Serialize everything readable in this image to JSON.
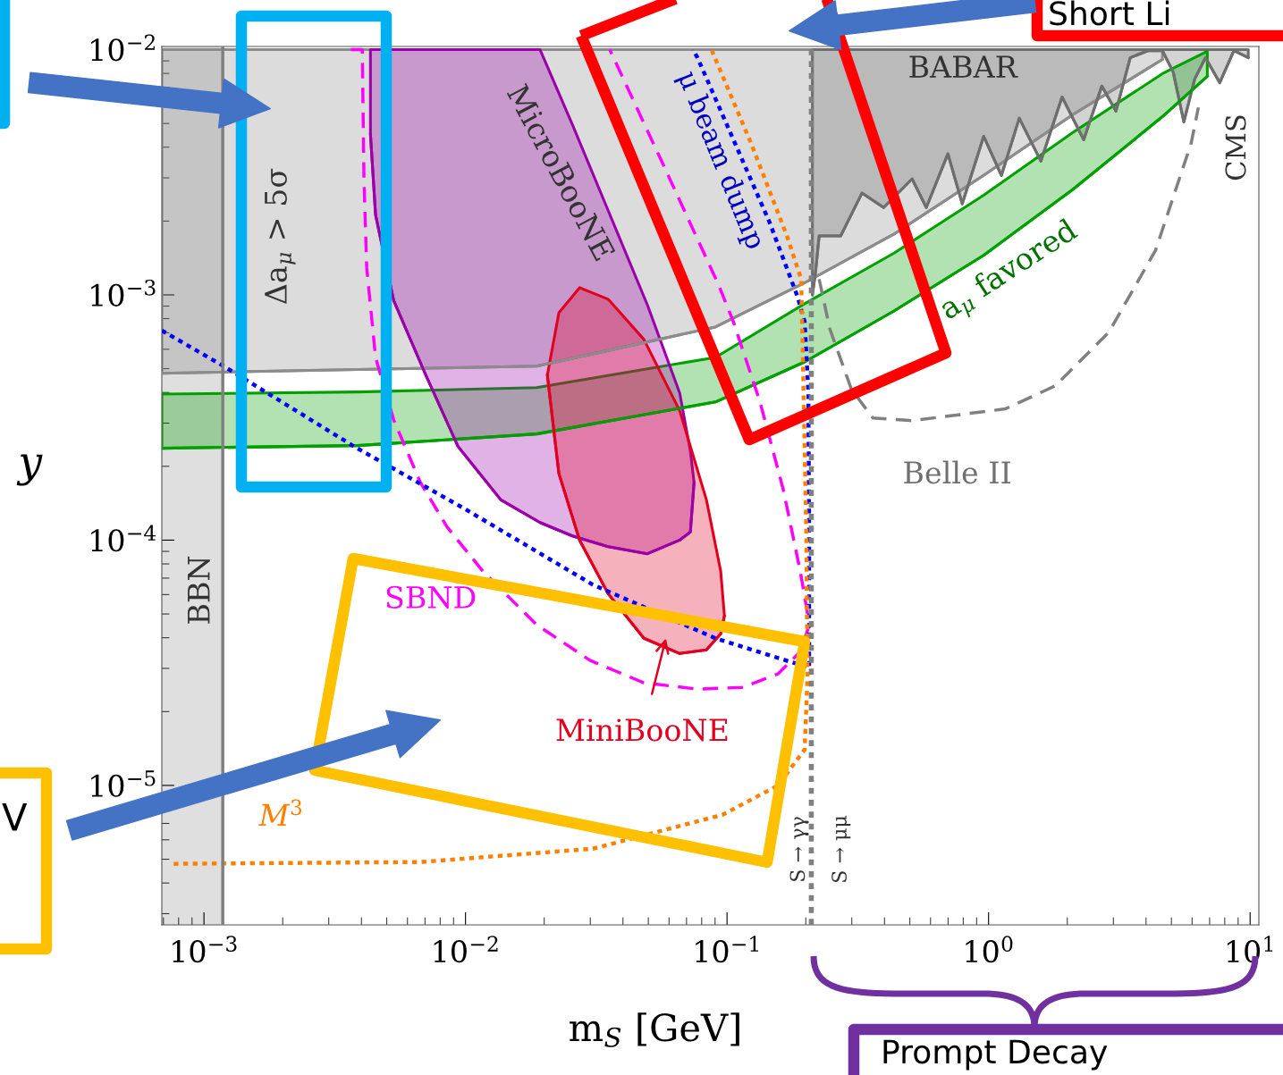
{
  "chart_data": {
    "type": "line",
    "log": "xy",
    "xlabel": "m$_{S}$ [GeV]",
    "ylabel": "y",
    "xlim": [
      0.00069,
      10.8
    ],
    "ylim": [
      2.7e-06,
      0.0103
    ],
    "xticks": [
      {
        "value": 0.001,
        "label": "10$^{−3}$"
      },
      {
        "value": 0.01,
        "label": "10$^{−2}$"
      },
      {
        "value": 0.1,
        "label": "10$^{−1}$"
      },
      {
        "value": 1,
        "label": "10$^{0}$"
      },
      {
        "value": 10,
        "label": "10$^{1}$"
      }
    ],
    "yticks": [
      {
        "value": 1e-05,
        "label": "10$^{−5}$"
      },
      {
        "value": 0.0001,
        "label": "10$^{−4}$"
      },
      {
        "value": 0.001,
        "label": "10$^{−3}$"
      },
      {
        "value": 0.01,
        "label": "10$^{−2}$"
      }
    ],
    "grid": false,
    "bands": [
      {
        "axis": "x",
        "from": 0.00069,
        "to": 0.00118,
        "color": "#808080"
      }
    ],
    "ref_lines": [
      {
        "axis": "x",
        "value": 0.00118,
        "color": "#808080",
        "line_style": "solid"
      },
      {
        "axis": "x",
        "value": 0.21,
        "color": "#808080",
        "line_style": "dotted"
      }
    ],
    "series": [
      {
        "color": "#8c8c8c",
        "line_style": "solid",
        "x": [
          0.00069,
          0.00387,
          0.0187,
          0.0903,
          0.198,
          0.435,
          0.957,
          2.1,
          4.62
        ],
        "values": [
          0.000479,
          0.000496,
          0.000512,
          0.00074,
          0.00112,
          0.00177,
          0.00307,
          0.00543,
          0.00912
        ],
        "lower": [
          0.000479,
          0.000496,
          0.000512,
          0.00074,
          0.00112,
          0.00177,
          0.00307,
          0.00543,
          0.00912
        ],
        "upper": [
          0.01,
          0.01,
          0.01,
          0.01,
          0.01,
          0.01,
          0.01,
          0.01,
          0.01
        ]
      },
      {
        "color": "#6e6e6e",
        "line_style": "solid",
        "x": [
          0.212,
          0.218,
          0.225,
          0.272,
          0.328,
          0.397,
          0.51,
          0.578,
          0.699,
          0.793,
          0.958,
          1.12,
          1.31,
          1.585,
          1.91,
          2.31,
          2.71,
          3.07,
          3.48,
          4.07,
          4.62,
          5.08,
          5.58,
          6.14,
          6.75,
          7.65,
          8.67,
          9.84
        ],
        "values": [
          0.001,
          0.00124,
          0.00174,
          0.00174,
          0.0026,
          0.00227,
          0.00297,
          0.00227,
          0.00376,
          0.00235,
          0.00443,
          0.00307,
          0.00525,
          0.00351,
          0.00641,
          0.00429,
          0.0071,
          0.00561,
          0.00927,
          0.0099,
          0.0099,
          0.0081,
          0.00507,
          0.00759,
          0.00927,
          0.00733,
          0.0099,
          0.00927
        ],
        "lower": [
          0.001,
          0.00124,
          0.00174,
          0.00174,
          0.0026,
          0.00227,
          0.00297,
          0.00227,
          0.00376,
          0.00235,
          0.00443,
          0.00307,
          0.00525,
          0.00351,
          0.00641,
          0.00429,
          0.0071,
          0.00561,
          0.00927,
          0.0099,
          0.0099,
          0.0081,
          0.00507,
          0.00759,
          0.00927,
          0.00733,
          0.0099,
          0.00927
        ],
        "upper": [
          0.01,
          0.01,
          0.01,
          0.01,
          0.01,
          0.01,
          0.01,
          0.01,
          0.01,
          0.01,
          0.01,
          0.01,
          0.01,
          0.01,
          0.01,
          0.01,
          0.01,
          0.01,
          0.01,
          0.01,
          0.01,
          0.01,
          0.01,
          0.01,
          0.01,
          0.01,
          0.01,
          0.01
        ]
      },
      {
        "color": "#00a000",
        "line_style": "solid",
        "x": [
          0.00069,
          0.00387,
          0.0187,
          0.0903,
          0.198,
          0.435,
          0.957,
          2.1,
          4.62,
          6.86
        ],
        "values": [
          0.000237,
          0.000243,
          0.000271,
          0.000366,
          0.000533,
          0.00086,
          0.00145,
          0.00269,
          0.00533,
          0.00778
        ],
        "lower": [
          0.000237,
          0.000243,
          0.000271,
          0.000366,
          0.000533,
          0.00086,
          0.00145,
          0.00269,
          0.00533,
          0.00778
        ],
        "upper": [
          0.000394,
          0.000402,
          0.000419,
          0.000556,
          0.00092,
          0.00148,
          0.00255,
          0.00459,
          0.00798,
          0.00985
        ]
      },
      {
        "color": "#9a00a8",
        "line_style": "solid",
        "x": [
          0.00433,
          0.00453,
          0.00531,
          0.00705,
          0.00936,
          0.01365,
          0.01928,
          0.02562,
          0.0351,
          0.0496,
          0.0659,
          0.0724,
          0.0748
        ],
        "values": [
          0.00452,
          0.00212,
          0.00095,
          0.000471,
          0.000241,
          0.000146,
          0.000118,
          0.000104,
          9.4e-05,
          8.8e-05,
          0.0001,
          0.000108,
          0.000172
        ],
        "lower": [
          0.00452,
          0.00212,
          0.00095,
          0.000471,
          0.000241,
          0.000146,
          0.000118,
          0.000104,
          9.4e-05,
          8.8e-05,
          0.0001,
          0.000108,
          0.000172
        ],
        "upper": [
          0.01,
          0.01,
          0.01,
          0.01,
          0.01,
          0.01,
          0.01,
          0.00495,
          0.00221,
          0.00091,
          0.000398,
          0.000231,
          0.000172
        ]
      },
      {
        "color": "#e00020",
        "line_style": "solid",
        "x": [
          0.02056,
          0.02275,
          0.0273,
          0.0351,
          0.0481,
          0.0659,
          0.0834,
          0.0946,
          0.0977
        ],
        "values": [
          0.000471,
          0.000187,
          0.0001,
          6.05e-05,
          3.98e-05,
          3.45e-05,
          3.57e-05,
          4.15e-05,
          4.91e-05
        ],
        "lower": [
          0.000471,
          0.000187,
          0.0001,
          6.05e-05,
          3.98e-05,
          3.45e-05,
          3.57e-05,
          4.15e-05,
          4.91e-05
        ],
        "upper": [
          0.000471,
          0.000846,
          0.00107,
          0.00096,
          0.000658,
          0.000337,
          0.000146,
          7.46e-05,
          4.91e-05
        ]
      },
      {
        "color": "#ff00ff",
        "line_style": "dashed",
        "x": [
          0.00364,
          0.00403,
          0.00409,
          0.00419,
          0.00453,
          0.00531,
          0.00672,
          0.00851,
          0.01166,
          0.0187,
          0.03,
          0.0481,
          0.0771,
          0.1143,
          0.1567,
          0.1906,
          0.2065,
          0.1906,
          0.164,
          0.1337,
          0.1057,
          0.0931,
          0.0562,
          0.0356
        ],
        "values": [
          0.01,
          0.01,
          0.00297,
          0.00129,
          0.000556,
          0.00031,
          0.000172,
          0.000113,
          7.46e-05,
          4.52e-05,
          3.23e-05,
          2.62e-05,
          2.47e-05,
          2.51e-05,
          2.85e-05,
          3.51e-05,
          4.52e-05,
          7.46e-05,
          0.000161,
          0.000366,
          0.000778,
          0.00109,
          0.00351,
          0.01
        ]
      },
      {
        "color": "#0000ff",
        "line_style": "dotted",
        "x": [
          0.00069,
          0.00119,
          0.00375,
          0.00995,
          0.0307,
          0.0903,
          0.206,
          0.206,
          0.2047,
          0.198,
          0.186,
          0.145,
          0.1057,
          0.0771,
          0.0741
        ],
        "values": [
          0.000716,
          0.000512,
          0.000241,
          0.000134,
          6.58e-05,
          3.98e-05,
          3.02e-05,
          0.000104,
          0.000398,
          0.000778,
          0.000984,
          0.00199,
          0.0043,
          0.00927,
          0.01
        ]
      },
      {
        "color": "#ff8000",
        "line_style": "dotted",
        "x": [
          0.000766,
          0.00672,
          0.0307,
          0.0961,
          0.1567,
          0.198,
          0.203,
          0.201,
          0.195,
          0.192,
          0.1694,
          0.1236,
          0.0875
        ],
        "values": [
          4.79e-06,
          4.87e-06,
          5.52e-06,
          7.59e-06,
          1e-05,
          1.4e-05,
          2.73e-05,
          0.000104,
          0.000556,
          0.00116,
          0.00174,
          0.00415,
          0.0099
        ]
      },
      {
        "color": "#808080",
        "line_style": "dashed",
        "x": [
          0.225,
          0.247,
          0.299,
          0.361,
          0.51,
          1.16,
          1.8,
          2.88,
          4.35,
          5.95,
          6.34
        ],
        "values": [
          0.00116,
          0.000728,
          0.000412,
          0.000315,
          0.000307,
          0.000343,
          0.000426,
          0.000703,
          0.00152,
          0.00415,
          0.00581
        ]
      }
    ],
    "annotations": [
      "BBN",
      "Δa$_{μ}$ > 5σ",
      "MicroBooNE",
      "μ beam dump",
      "BABAR",
      "CMS",
      "a$_{μ}$ favored",
      "Belle II",
      "SBND",
      "MiniBooNE",
      "M$^{3}$",
      "S → γγ",
      "S → μμ",
      "Short Li",
      "V",
      "Prompt Decay"
    ]
  }
}
